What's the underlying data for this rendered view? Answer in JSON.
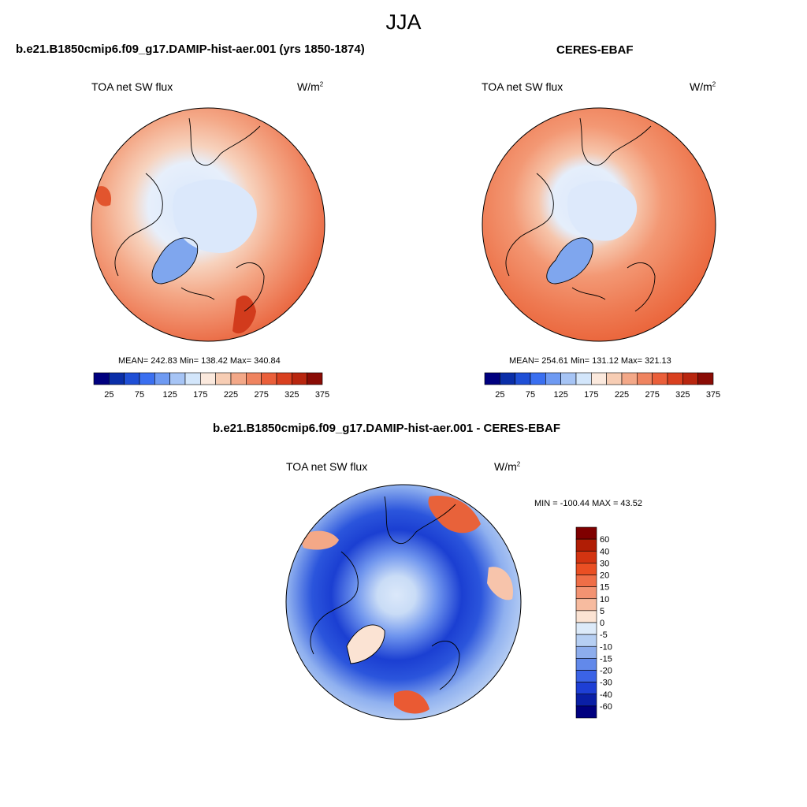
{
  "title": "JJA",
  "panels": [
    {
      "title": "b.e21.B1850cmip6.f09_g17.DAMIP-hist-aer.001 (yrs 1850-1874)",
      "variable": "TOA net SW flux",
      "units_base": "W/m",
      "units_exp": "2",
      "stats": "MEAN= 242.83  Min= 138.42  Max= 340.84"
    },
    {
      "title": "CERES-EBAF",
      "variable": "TOA net SW flux",
      "units_base": "W/m",
      "units_exp": "2",
      "stats": "MEAN= 254.61  Min= 131.12  Max= 321.13"
    },
    {
      "title": "b.e21.B1850cmip6.f09_g17.DAMIP-hist-aer.001 - CERES-EBAF",
      "variable": "TOA net SW flux",
      "units_base": "W/m",
      "units_exp": "2",
      "stats": "MIN = -100.44 MAX =  43.52"
    }
  ],
  "chart_data": [
    {
      "type": "heatmap",
      "projection": "north polar stereographic",
      "title": "b.e21.B1850cmip6.f09_g17.DAMIP-hist-aer.001 (yrs 1850-1874)",
      "variable": "TOA net SW flux",
      "units": "W/m2",
      "mean": 242.83,
      "min": 138.42,
      "max": 340.84,
      "colorbar": {
        "orientation": "horizontal",
        "tick_labels": [
          "25",
          "75",
          "125",
          "175",
          "225",
          "275",
          "325",
          "375"
        ],
        "colors": [
          "#00007f",
          "#0a2ea8",
          "#1f4fd6",
          "#3a6ff0",
          "#6e9af2",
          "#a6c4f5",
          "#d3e6fb",
          "#fbe9dd",
          "#f7cdb4",
          "#f3a888",
          "#ef8460",
          "#ea5f3a",
          "#d9401f",
          "#b8260f",
          "#8a0c05"
        ]
      }
    },
    {
      "type": "heatmap",
      "projection": "north polar stereographic",
      "title": "CERES-EBAF",
      "variable": "TOA net SW flux",
      "units": "W/m2",
      "mean": 254.61,
      "min": 131.12,
      "max": 321.13,
      "colorbar": {
        "orientation": "horizontal",
        "tick_labels": [
          "25",
          "75",
          "125",
          "175",
          "225",
          "275",
          "325",
          "375"
        ],
        "colors": [
          "#00007f",
          "#0a2ea8",
          "#1f4fd6",
          "#3a6ff0",
          "#6e9af2",
          "#a6c4f5",
          "#d3e6fb",
          "#fbe9dd",
          "#f7cdb4",
          "#f3a888",
          "#ef8460",
          "#ea5f3a",
          "#d9401f",
          "#b8260f",
          "#8a0c05"
        ]
      }
    },
    {
      "type": "heatmap",
      "projection": "north polar stereographic",
      "title": "b.e21.B1850cmip6.f09_g17.DAMIP-hist-aer.001 - CERES-EBAF",
      "variable": "TOA net SW flux",
      "units": "W/m2",
      "min": -100.44,
      "max": 43.52,
      "colorbar": {
        "orientation": "vertical",
        "tick_labels": [
          "60",
          "40",
          "30",
          "20",
          "15",
          "10",
          "5",
          "0",
          "-5",
          "-10",
          "-15",
          "-20",
          "-30",
          "-40",
          "-60"
        ],
        "colors": [
          "#7f0000",
          "#b01d05",
          "#d33411",
          "#ea4f23",
          "#ef6e47",
          "#f39372",
          "#f7bb9f",
          "#fbe3d3",
          "#dceaf9",
          "#b6cff3",
          "#8daded",
          "#6289ea",
          "#3b63e6",
          "#1e3fd5",
          "#0a1fa6",
          "#00007f"
        ]
      }
    }
  ]
}
